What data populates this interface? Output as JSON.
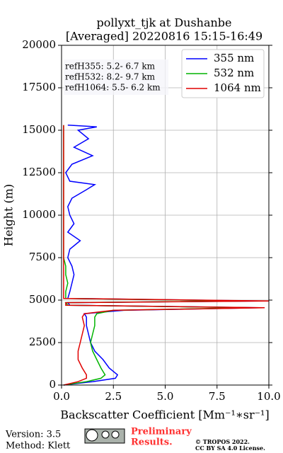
{
  "chart_data": {
    "type": "line",
    "title": [
      "pollyxt_tjk at Dushanbe",
      "[Averaged] 20220816 15:15-16:49"
    ],
    "x_label": "Backscatter Coefficient [Mm⁻¹∗sr⁻¹]",
    "y_label": "Height (m)",
    "annotations": [
      "refH355:  5.2- 6.7 km",
      "refH532:  8.2- 9.7 km",
      "refH1064:  5.5- 6.2 km"
    ],
    "heights": [
      0,
      200,
      400,
      600,
      1000,
      1500,
      2000,
      2500,
      3000,
      3500,
      4000,
      4200,
      4400,
      4550,
      4700,
      4850,
      4950,
      5100,
      5500,
      6000,
      6500,
      7000,
      7500,
      8000,
      8500,
      9000,
      9500,
      10000,
      10500,
      11000,
      11500,
      11800,
      12000,
      12500,
      13000,
      13500,
      14000,
      14500,
      15000,
      15200,
      15300
    ],
    "series": [
      {
        "name": "355 nm",
        "color": "#0000ff",
        "values": [
          0.1,
          1.5,
          2.6,
          2.7,
          2.3,
          2.0,
          1.6,
          1.4,
          1.3,
          1.2,
          1.2,
          1.1,
          3.0,
          9.5,
          0.4,
          0.3,
          9.5,
          0.3,
          0.4,
          0.5,
          0.6,
          0.5,
          0.3,
          0.4,
          0.9,
          0.3,
          0.6,
          0.4,
          0.3,
          0.5,
          1.2,
          1.6,
          0.4,
          0.2,
          0.5,
          1.5,
          0.6,
          1.3,
          0.8,
          1.7,
          0.3
        ]
      },
      {
        "name": "532 nm",
        "color": "#00b400",
        "values": [
          0.1,
          1.2,
          1.9,
          2.1,
          1.9,
          1.7,
          1.5,
          1.4,
          1.5,
          1.6,
          1.6,
          1.7,
          2.5,
          9.2,
          0.3,
          0.2,
          9.0,
          0.2,
          0.2,
          0.3,
          0.2,
          0.2,
          0.1,
          0.1,
          0.1,
          0.1,
          0.1,
          0.1,
          0.1,
          0.1,
          0.1,
          0.1,
          0.1,
          0.1,
          0.1,
          0.1,
          0.1,
          0.1,
          0.1,
          0.1,
          0.1
        ]
      },
      {
        "name": "1064 nm",
        "color": "#e00000",
        "values": [
          0.1,
          0.8,
          1.2,
          1.2,
          1.0,
          0.8,
          0.8,
          0.9,
          1.0,
          1.1,
          1.0,
          1.1,
          2.5,
          9.8,
          0.2,
          0.2,
          10.0,
          0.1,
          0.1,
          0.1,
          0.1,
          0.1,
          0.1,
          0.1,
          0.1,
          0.1,
          0.1,
          0.1,
          0.1,
          0.1,
          0.1,
          0.1,
          0.1,
          0.1,
          0.1,
          0.1,
          0.1,
          0.1,
          0.1,
          0.1,
          0.1
        ]
      }
    ],
    "xlim": [
      0,
      10
    ],
    "xticks": [
      {
        "value": 0,
        "label": "0.0"
      },
      {
        "value": 2.5,
        "label": "2.5"
      },
      {
        "value": 5,
        "label": "5.0"
      },
      {
        "value": 7.5,
        "label": "7.5"
      },
      {
        "value": 10,
        "label": "10.0"
      }
    ],
    "ylim": [
      0,
      20000
    ],
    "yticks": [
      0,
      2500,
      5000,
      7500,
      10000,
      12500,
      15000,
      17500,
      20000
    ],
    "grid": true,
    "legend": "upper right"
  },
  "footer": {
    "version": "Version: 3.5",
    "method": "Method: Klett",
    "preliminary": [
      "Preliminary",
      "Results."
    ],
    "license": [
      "© TROPOS 2022.",
      "CC BY SA 4.0 License."
    ]
  }
}
